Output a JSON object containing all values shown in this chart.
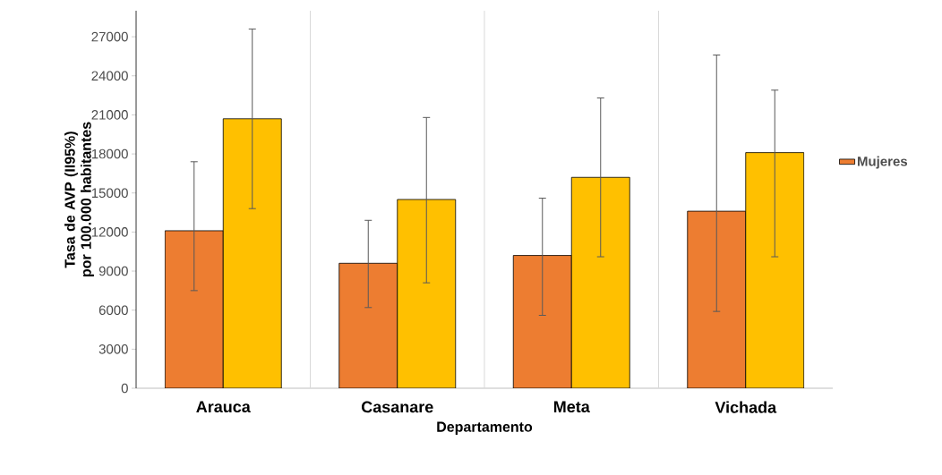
{
  "chart_data": {
    "type": "bar",
    "xlabel": "Departamento",
    "ylabel": "Tasa de AVP  (II95%) por 100.000 habitantes",
    "categories": [
      "Arauca",
      "Casanare",
      "Meta",
      "Vichada"
    ],
    "series": [
      {
        "name": "Mujeres",
        "color": "#ed7d31",
        "values": [
          12100,
          9600,
          10200,
          13600
        ],
        "errors": [
          [
            7500,
            17400
          ],
          [
            6200,
            12900
          ],
          [
            5600,
            14600
          ],
          [
            5900,
            25600
          ]
        ]
      },
      {
        "color": "#ffc000",
        "values": [
          20700,
          14500,
          16200,
          18100
        ],
        "errors": [
          [
            13800,
            27600
          ],
          [
            8100,
            20800
          ],
          [
            10100,
            22300
          ],
          [
            10100,
            22900
          ]
        ]
      }
    ],
    "ylim": [
      0,
      29000
    ],
    "yticks": [
      0,
      3000,
      6000,
      9000,
      12000,
      15000,
      18000,
      21000,
      24000,
      27000
    ],
    "grid": "x",
    "legend": "right"
  }
}
